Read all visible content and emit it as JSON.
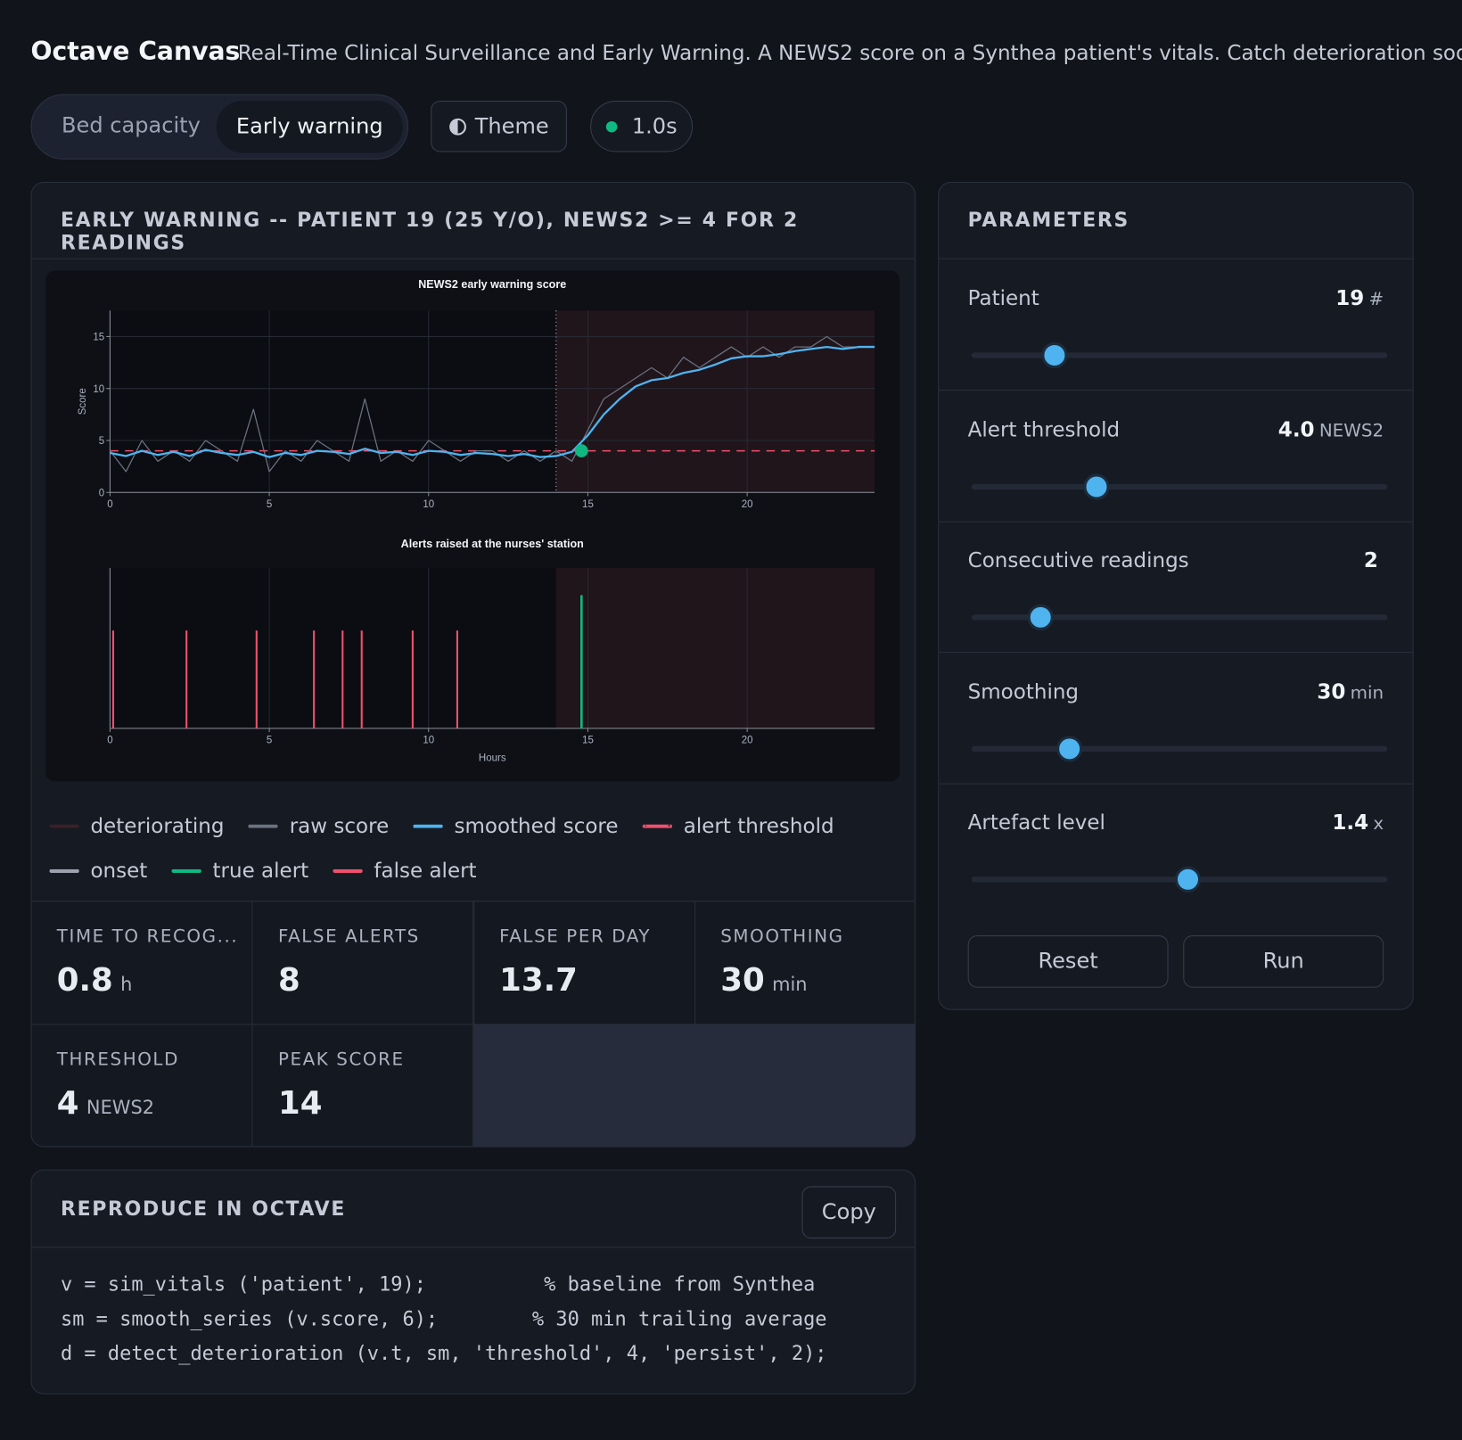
{
  "header": {
    "title": "Octave Canvas",
    "subtitle": "Real-Time Clinical Surveillance and Early Warning. A NEWS2 score on a Synthea patient's vitals. Catch deterioration soon..."
  },
  "tabs": [
    "Bed capacity",
    "Early warning"
  ],
  "theme_button": "Theme",
  "refresh": "1.0s",
  "panel": {
    "title": "EARLY WARNING -- PATIENT 19 (25 Y/O), NEWS2 >= 4 FOR 2 READINGS"
  },
  "chart_data": [
    {
      "type": "line",
      "title": "NEWS2 early warning score",
      "y_label": "Score",
      "x": [
        0,
        0.5,
        1,
        1.5,
        2,
        2.5,
        3,
        3.5,
        4,
        4.5,
        5,
        5.5,
        6,
        6.5,
        7,
        7.5,
        8,
        8.5,
        9,
        9.5,
        10,
        10.5,
        11,
        11.5,
        12,
        12.5,
        13,
        13.5,
        14,
        14.5,
        15,
        15.5,
        16,
        16.5,
        17,
        17.5,
        18,
        18.5,
        19,
        19.5,
        20,
        20.5,
        21,
        21.5,
        22,
        22.5,
        23,
        23.5,
        24
      ],
      "xlim": [
        0,
        24
      ],
      "xticks": [
        0,
        5,
        10,
        15,
        20
      ],
      "ylim": [
        0,
        17.5
      ],
      "yticks": [
        0,
        5,
        10,
        15
      ],
      "grid": true,
      "series": [
        {
          "values": [
            4,
            2,
            5,
            3,
            4,
            3,
            5,
            4,
            3,
            8,
            2,
            4,
            3,
            5,
            4,
            3,
            9,
            3,
            4,
            3,
            5,
            4,
            3,
            4,
            4,
            3,
            4,
            3,
            4,
            3,
            6,
            9,
            10,
            11,
            12,
            11,
            13,
            12,
            13,
            14,
            13,
            14,
            13,
            14,
            14,
            15,
            14,
            14,
            14
          ]
        },
        {
          "values": [
            3.8,
            3.5,
            4.0,
            3.6,
            3.9,
            3.5,
            4.1,
            3.8,
            3.6,
            3.9,
            3.4,
            3.8,
            3.6,
            4.0,
            3.9,
            3.7,
            4.2,
            3.8,
            3.9,
            3.6,
            4.0,
            3.9,
            3.6,
            3.8,
            3.7,
            3.5,
            3.7,
            3.4,
            3.5,
            3.9,
            5.5,
            7.5,
            9.0,
            10.2,
            10.8,
            11.0,
            11.5,
            11.8,
            12.3,
            12.9,
            13.1,
            13.1,
            13.3,
            13.6,
            13.8,
            14.0,
            13.8,
            14.0,
            14.0
          ]
        }
      ],
      "threshold": 4,
      "onset": 14,
      "deteriorating": [
        14,
        24
      ],
      "detection": {
        "x": 14.8,
        "y": 4
      }
    },
    {
      "type": "events",
      "title": "Alerts raised at the nurses' station",
      "x_label": "Hours",
      "xlim": [
        0,
        24
      ],
      "xticks": [
        0,
        5,
        10,
        15,
        20
      ],
      "deteriorating": [
        14,
        24
      ],
      "false_alerts": [
        0.1,
        2.4,
        4.6,
        6.4,
        7.3,
        7.9,
        9.5,
        10.9
      ],
      "true_alerts": [
        14.8
      ]
    }
  ],
  "legend": [
    {
      "name": "deteriorating",
      "color": "#3a2027",
      "style": "line"
    },
    {
      "name": "raw score",
      "color": "#6b7280",
      "style": "line"
    },
    {
      "name": "smoothed score",
      "color": "#4fb3f0",
      "style": "line"
    },
    {
      "name": "alert threshold",
      "color": "#f0506e",
      "style": "dashed"
    },
    {
      "name": "onset",
      "color": "#9ca3af",
      "style": "line"
    },
    {
      "name": "true alert",
      "color": "#10b981",
      "style": "line"
    },
    {
      "name": "false alert",
      "color": "#f0506e",
      "style": "line"
    }
  ],
  "stats": [
    {
      "label": "TIME TO RECOG...",
      "value": "0.8",
      "unit": "h"
    },
    {
      "label": "FALSE ALERTS",
      "value": "8"
    },
    {
      "label": "FALSE PER DAY",
      "value": "13.7"
    },
    {
      "label": "SMOOTHING",
      "value": "30",
      "unit": "min"
    },
    {
      "label": "THRESHOLD",
      "value": "4",
      "unit": "NEWS2"
    },
    {
      "label": "PEAK SCORE",
      "value": "14"
    }
  ],
  "parameters": {
    "title": "PARAMETERS",
    "items": [
      {
        "label": "Patient",
        "value": "19",
        "unit": "#"
      },
      {
        "label": "Alert threshold",
        "value": "4.0",
        "unit": "NEWS2"
      },
      {
        "label": "Consecutive readings",
        "value": "2"
      },
      {
        "label": "Smoothing",
        "value": "30",
        "unit": "min"
      },
      {
        "label": "Artefact level",
        "value": "1.4",
        "unit": "x"
      }
    ],
    "buttons": [
      "Reset",
      "Run"
    ]
  },
  "code": {
    "title": "REPRODUCE IN OCTAVE",
    "copy": "Copy",
    "lines": [
      "v = sim_vitals ('patient', 19);          % baseline from Synthea",
      "sm = smooth_series (v.score, 6);        % 30 min trailing average",
      "d = detect_deterioration (v.t, sm, 'threshold', 4, 'persist', 2);"
    ]
  }
}
